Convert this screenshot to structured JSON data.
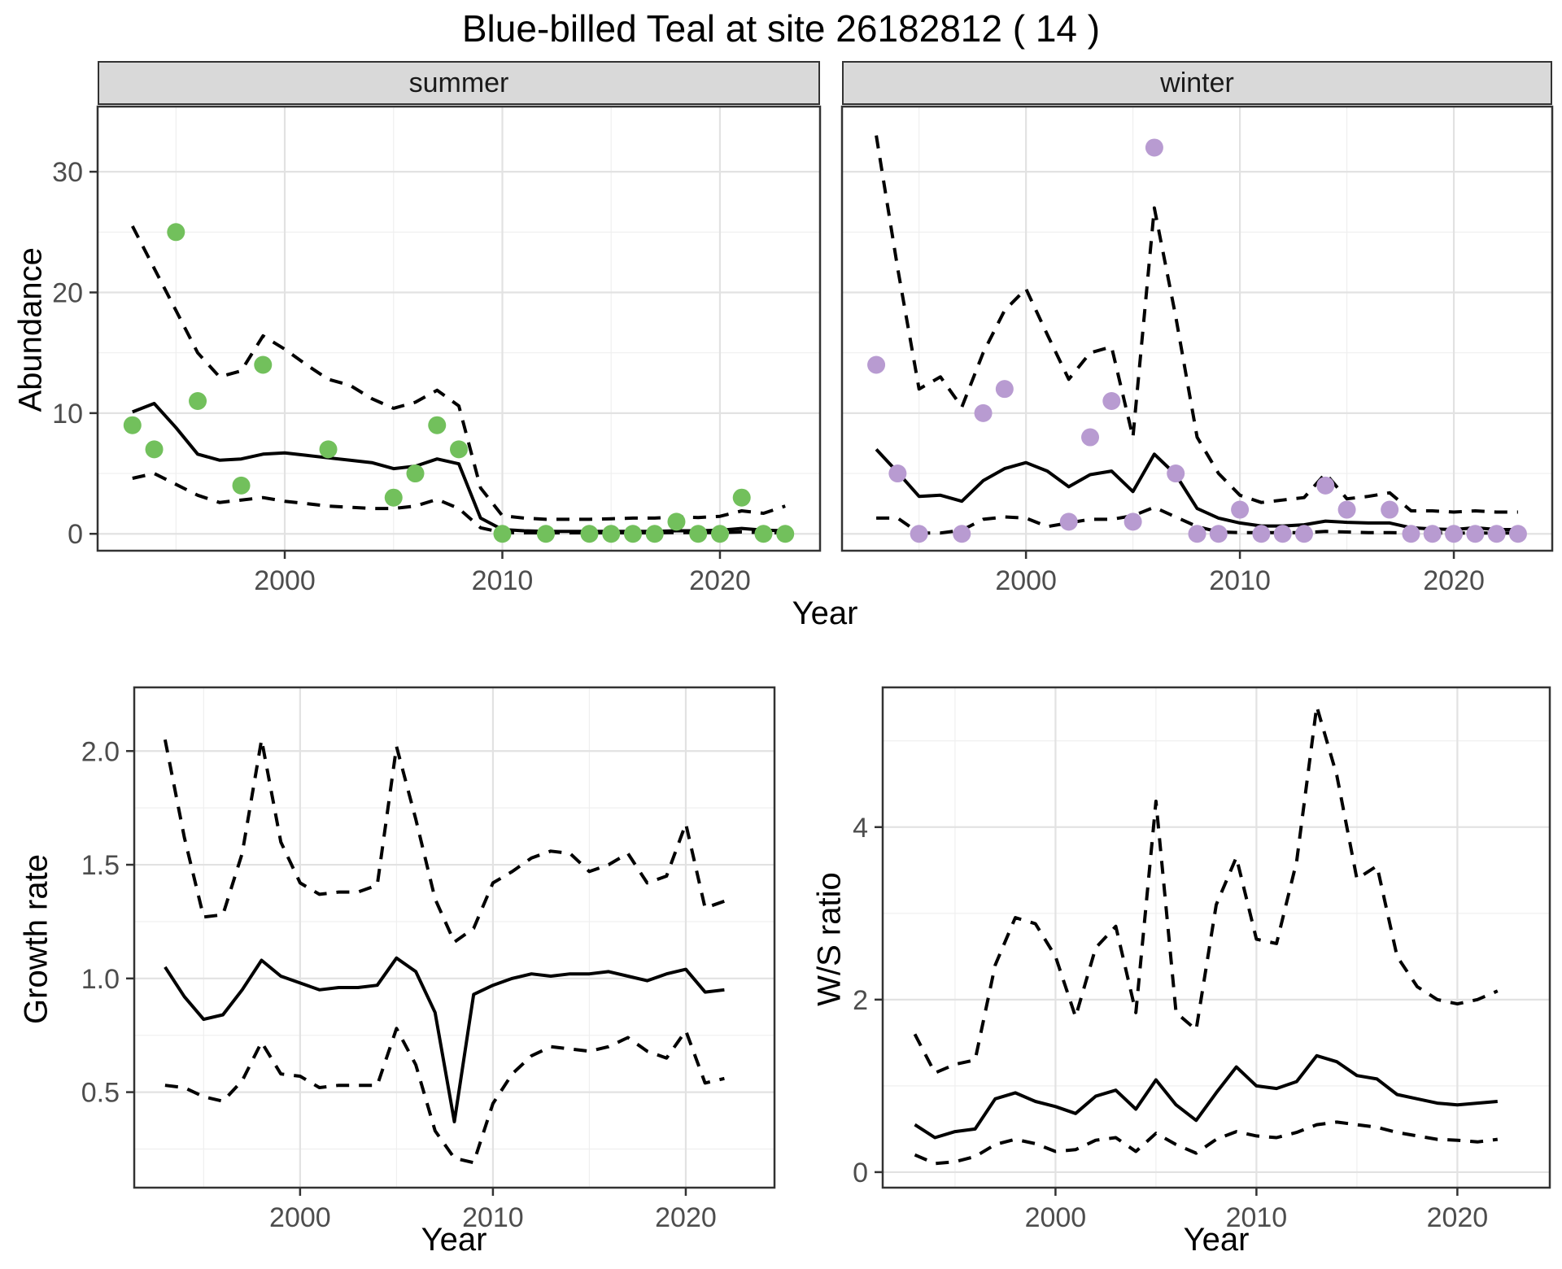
{
  "labels": {
    "title": "Blue-billed Teal at site 26182812 ( 14 )",
    "abundance": "Abundance",
    "growth_rate": "Growth rate",
    "ws_ratio": "W/S ratio",
    "year": "Year"
  },
  "colors": {
    "summer_points": "#72c05c",
    "winter_points": "#b89bd1",
    "line": "#000000",
    "strip_background": "#d9d9d9",
    "panel_border": "#333333",
    "grid_major": "#e2e2e2",
    "grid_minor": "#efefef",
    "tick_text": "#4d4d4d"
  },
  "chart_data": [
    {
      "id": "summer",
      "type": "line",
      "facet": "summer",
      "xlabel": "Year",
      "ylabel": "Abundance",
      "xlim": [
        1991.4,
        2024.6
      ],
      "ylim": [
        -1.4,
        35.4
      ],
      "x_ticks": [
        2000,
        2010,
        2020
      ],
      "x_minor": [
        1995,
        2005,
        2015
      ],
      "y_ticks": [
        0,
        10,
        20,
        30
      ],
      "y_minor": [
        5,
        15,
        25
      ],
      "series": [
        {
          "name": "mean",
          "style": "solid",
          "x": [
            1993,
            1994,
            1995,
            1996,
            1997,
            1998,
            1999,
            2000,
            2001,
            2002,
            2003,
            2004,
            2005,
            2006,
            2007,
            2008,
            2009,
            2010,
            2011,
            2012,
            2013,
            2014,
            2015,
            2016,
            2017,
            2018,
            2019,
            2020,
            2021,
            2022,
            2023
          ],
          "y": [
            10.1,
            10.8,
            8.8,
            6.6,
            6.1,
            6.2,
            6.6,
            6.7,
            6.5,
            6.3,
            6.1,
            5.9,
            5.4,
            5.6,
            6.2,
            5.8,
            1.3,
            0.35,
            0.25,
            0.2,
            0.2,
            0.2,
            0.2,
            0.2,
            0.2,
            0.25,
            0.25,
            0.3,
            0.45,
            0.3,
            0.25
          ]
        },
        {
          "name": "upper-ci",
          "style": "dashed",
          "x": [
            1993,
            1994,
            1995,
            1996,
            1997,
            1998,
            1999,
            2000,
            2001,
            2002,
            2003,
            2004,
            2005,
            2006,
            2007,
            2008,
            2009,
            2010,
            2011,
            2012,
            2013,
            2014,
            2015,
            2016,
            2017,
            2018,
            2019,
            2020,
            2021,
            2022,
            2023
          ],
          "y": [
            25.5,
            22.0,
            18.5,
            15.0,
            13.0,
            13.5,
            16.4,
            15.3,
            14.0,
            12.8,
            12.3,
            11.2,
            10.4,
            10.9,
            11.9,
            10.6,
            3.8,
            1.5,
            1.3,
            1.2,
            1.2,
            1.2,
            1.25,
            1.3,
            1.3,
            1.4,
            1.35,
            1.45,
            1.9,
            1.7,
            2.3
          ]
        },
        {
          "name": "lower-ci",
          "style": "dashed",
          "x": [
            1993,
            1994,
            1995,
            1996,
            1997,
            1998,
            1999,
            2000,
            2001,
            2002,
            2003,
            2004,
            2005,
            2006,
            2007,
            2008,
            2009,
            2010,
            2011,
            2012,
            2013,
            2014,
            2015,
            2016,
            2017,
            2018,
            2019,
            2020,
            2021,
            2022,
            2023
          ],
          "y": [
            4.6,
            5.0,
            4.1,
            3.2,
            2.6,
            2.8,
            3.0,
            2.7,
            2.5,
            2.3,
            2.2,
            2.1,
            2.1,
            2.3,
            2.85,
            2.1,
            0.5,
            0.1,
            0.08,
            0.08,
            0.08,
            0.08,
            0.08,
            0.08,
            0.08,
            0.1,
            0.1,
            0.1,
            0.15,
            0.1,
            0.08
          ]
        },
        {
          "name": "observed",
          "style": "points",
          "color": "#72c05c",
          "x": [
            1993,
            1994,
            1995,
            1996,
            1998,
            1999,
            2002,
            2005,
            2006,
            2007,
            2008,
            2010,
            2012,
            2014,
            2015,
            2016,
            2017,
            2018,
            2019,
            2020,
            2021,
            2022,
            2023
          ],
          "y": [
            9,
            7,
            25,
            11,
            4,
            14,
            7,
            3,
            5,
            9,
            7,
            0,
            0,
            0,
            0,
            0,
            0,
            1,
            0,
            0,
            3,
            0,
            0
          ]
        }
      ]
    },
    {
      "id": "winter",
      "type": "line",
      "facet": "winter",
      "xlabel": "Year",
      "ylabel": "Abundance",
      "xlim": [
        1991.4,
        2024.6
      ],
      "ylim": [
        -1.4,
        35.4
      ],
      "x_ticks": [
        2000,
        2010,
        2020
      ],
      "x_minor": [
        1995,
        2005,
        2015
      ],
      "y_ticks": [
        0,
        10,
        20,
        30
      ],
      "y_minor": [
        5,
        15,
        25
      ],
      "series": [
        {
          "name": "mean",
          "style": "solid",
          "x": [
            1993,
            1994,
            1995,
            1996,
            1997,
            1998,
            1999,
            2000,
            2001,
            2002,
            2003,
            2004,
            2005,
            2006,
            2007,
            2008,
            2009,
            2010,
            2011,
            2012,
            2013,
            2014,
            2015,
            2016,
            2017,
            2018,
            2019,
            2020,
            2021,
            2022,
            2023
          ],
          "y": [
            7.0,
            5.1,
            3.1,
            3.2,
            2.7,
            4.4,
            5.4,
            5.9,
            5.2,
            3.9,
            4.9,
            5.2,
            3.5,
            6.6,
            4.9,
            2.1,
            1.3,
            0.9,
            0.65,
            0.65,
            0.75,
            1.05,
            0.95,
            0.9,
            0.9,
            0.5,
            0.4,
            0.35,
            0.5,
            0.35,
            0.35
          ]
        },
        {
          "name": "upper-ci",
          "style": "dashed",
          "x": [
            1993,
            1994,
            1995,
            1996,
            1997,
            1998,
            1999,
            2000,
            2001,
            2002,
            2003,
            2004,
            2005,
            2006,
            2007,
            2008,
            2009,
            2010,
            2011,
            2012,
            2013,
            2014,
            2015,
            2016,
            2017,
            2018,
            2019,
            2020,
            2021,
            2022,
            2023
          ],
          "y": [
            33,
            22,
            12,
            13,
            10.5,
            15,
            18.5,
            20.3,
            16.5,
            12.8,
            15,
            15.5,
            8,
            27,
            18,
            8,
            5,
            3.2,
            2.6,
            2.8,
            3,
            5,
            2.9,
            3.1,
            3.4,
            1.9,
            1.9,
            1.8,
            1.9,
            1.8,
            1.8
          ]
        },
        {
          "name": "lower-ci",
          "style": "dashed",
          "x": [
            1993,
            1994,
            1995,
            1996,
            1997,
            1998,
            1999,
            2000,
            2001,
            2002,
            2003,
            2004,
            2005,
            2006,
            2007,
            2008,
            2009,
            2010,
            2011,
            2012,
            2013,
            2014,
            2015,
            2016,
            2017,
            2018,
            2019,
            2020,
            2021,
            2022,
            2023
          ],
          "y": [
            1.3,
            1.3,
            0.07,
            0.07,
            0.3,
            1.2,
            1.4,
            1.3,
            0.6,
            0.9,
            1.2,
            1.2,
            1.5,
            2.2,
            1.4,
            0.6,
            0.15,
            0.1,
            0.1,
            0.1,
            0.1,
            0.2,
            0.15,
            0.1,
            0.1,
            0.07,
            0.07,
            0.07,
            0.07,
            0.07,
            0.07
          ]
        },
        {
          "name": "observed",
          "style": "points",
          "color": "#b89bd1",
          "x": [
            1993,
            1994,
            1995,
            1997,
            1998,
            1999,
            2002,
            2003,
            2004,
            2005,
            2006,
            2007,
            2008,
            2009,
            2010,
            2011,
            2012,
            2013,
            2014,
            2015,
            2017,
            2018,
            2019,
            2020,
            2021,
            2022,
            2023
          ],
          "y": [
            14,
            5,
            0,
            0,
            10,
            12,
            1,
            8,
            11,
            1,
            32,
            5,
            0,
            0,
            2,
            0,
            0,
            0,
            4,
            2,
            2,
            0,
            0,
            0,
            0,
            0,
            0
          ]
        }
      ]
    },
    {
      "id": "growth",
      "type": "line",
      "facet": null,
      "xlabel": "Year",
      "ylabel": "Growth rate",
      "xlim": [
        1991.4,
        2024.6
      ],
      "ylim": [
        0.08,
        2.28
      ],
      "x_ticks": [
        2000,
        2010,
        2020
      ],
      "x_minor": [
        1995,
        2005,
        2015
      ],
      "y_ticks": [
        0.5,
        1.0,
        1.5,
        2.0
      ],
      "y_tick_labels": [
        "0.5",
        "1.0",
        "1.5",
        "2.0"
      ],
      "y_minor": [
        0.25,
        0.75,
        1.25,
        1.75
      ],
      "series": [
        {
          "name": "mean",
          "style": "solid",
          "x": [
            1993,
            1994,
            1995,
            1996,
            1997,
            1998,
            1999,
            2000,
            2001,
            2002,
            2003,
            2004,
            2005,
            2006,
            2007,
            2008,
            2009,
            2010,
            2011,
            2012,
            2013,
            2014,
            2015,
            2016,
            2017,
            2018,
            2019,
            2020,
            2021,
            2022
          ],
          "y": [
            1.05,
            0.92,
            0.82,
            0.84,
            0.95,
            1.08,
            1.01,
            0.98,
            0.95,
            0.96,
            0.96,
            0.97,
            1.09,
            1.03,
            0.85,
            0.37,
            0.93,
            0.97,
            1.0,
            1.02,
            1.01,
            1.02,
            1.02,
            1.03,
            1.01,
            0.99,
            1.02,
            1.04,
            0.94,
            0.95
          ]
        },
        {
          "name": "upper-ci",
          "style": "dashed",
          "x": [
            1993,
            1994,
            1995,
            1996,
            1997,
            1998,
            1999,
            2000,
            2001,
            2002,
            2003,
            2004,
            2005,
            2006,
            2007,
            2008,
            2009,
            2010,
            2011,
            2012,
            2013,
            2014,
            2015,
            2016,
            2017,
            2018,
            2019,
            2020,
            2021,
            2022
          ],
          "y": [
            2.05,
            1.62,
            1.27,
            1.28,
            1.55,
            2.05,
            1.6,
            1.42,
            1.37,
            1.38,
            1.38,
            1.41,
            2.02,
            1.7,
            1.35,
            1.16,
            1.22,
            1.42,
            1.47,
            1.53,
            1.56,
            1.55,
            1.47,
            1.5,
            1.55,
            1.42,
            1.45,
            1.68,
            1.31,
            1.34
          ]
        },
        {
          "name": "lower-ci",
          "style": "dashed",
          "x": [
            1993,
            1994,
            1995,
            1996,
            1997,
            1998,
            1999,
            2000,
            2001,
            2002,
            2003,
            2004,
            2005,
            2006,
            2007,
            2008,
            2009,
            2010,
            2011,
            2012,
            2013,
            2014,
            2015,
            2016,
            2017,
            2018,
            2019,
            2020,
            2021,
            2022
          ],
          "y": [
            0.53,
            0.52,
            0.48,
            0.46,
            0.55,
            0.72,
            0.58,
            0.57,
            0.52,
            0.53,
            0.53,
            0.53,
            0.78,
            0.62,
            0.33,
            0.21,
            0.19,
            0.45,
            0.58,
            0.66,
            0.7,
            0.69,
            0.68,
            0.7,
            0.74,
            0.68,
            0.65,
            0.77,
            0.54,
            0.56
          ]
        }
      ]
    },
    {
      "id": "ws",
      "type": "line",
      "facet": null,
      "xlabel": "Year",
      "ylabel": "W/S ratio",
      "xlim": [
        1991.4,
        2024.6
      ],
      "ylim": [
        -0.18,
        5.62
      ],
      "x_ticks": [
        2000,
        2010,
        2020
      ],
      "x_minor": [
        1995,
        2005,
        2015
      ],
      "y_ticks": [
        0,
        2,
        4
      ],
      "y_minor": [
        1,
        3,
        5
      ],
      "series": [
        {
          "name": "mean",
          "style": "solid",
          "x": [
            1993,
            1994,
            1995,
            1996,
            1997,
            1998,
            1999,
            2000,
            2001,
            2002,
            2003,
            2004,
            2005,
            2006,
            2007,
            2008,
            2009,
            2010,
            2011,
            2012,
            2013,
            2014,
            2015,
            2016,
            2017,
            2018,
            2019,
            2020,
            2021,
            2022
          ],
          "y": [
            0.55,
            0.4,
            0.47,
            0.5,
            0.85,
            0.92,
            0.82,
            0.76,
            0.68,
            0.88,
            0.95,
            0.73,
            1.07,
            0.78,
            0.6,
            0.92,
            1.22,
            1.0,
            0.97,
            1.05,
            1.35,
            1.28,
            1.12,
            1.08,
            0.9,
            0.85,
            0.8,
            0.78,
            0.8,
            0.82
          ]
        },
        {
          "name": "upper-ci",
          "style": "dashed",
          "x": [
            1993,
            1994,
            1995,
            1996,
            1997,
            1998,
            1999,
            2000,
            2001,
            2002,
            2003,
            2004,
            2005,
            2006,
            2007,
            2008,
            2009,
            2010,
            2011,
            2012,
            2013,
            2014,
            2015,
            2016,
            2017,
            2018,
            2019,
            2020,
            2021,
            2022
          ],
          "y": [
            1.6,
            1.15,
            1.25,
            1.3,
            2.4,
            2.95,
            2.88,
            2.5,
            1.8,
            2.6,
            2.85,
            1.85,
            4.3,
            1.85,
            1.65,
            3.1,
            3.65,
            2.7,
            2.65,
            3.6,
            5.4,
            4.6,
            3.4,
            3.55,
            2.5,
            2.15,
            2.0,
            1.95,
            2.0,
            2.1
          ]
        },
        {
          "name": "lower-ci",
          "style": "dashed",
          "x": [
            1993,
            1994,
            1995,
            1996,
            1997,
            1998,
            1999,
            2000,
            2001,
            2002,
            2003,
            2004,
            2005,
            2006,
            2007,
            2008,
            2009,
            2010,
            2011,
            2012,
            2013,
            2014,
            2015,
            2016,
            2017,
            2018,
            2019,
            2020,
            2021,
            2022
          ],
          "y": [
            0.2,
            0.1,
            0.12,
            0.18,
            0.32,
            0.38,
            0.33,
            0.24,
            0.26,
            0.37,
            0.4,
            0.24,
            0.45,
            0.32,
            0.22,
            0.38,
            0.47,
            0.42,
            0.4,
            0.46,
            0.55,
            0.58,
            0.55,
            0.52,
            0.46,
            0.42,
            0.38,
            0.37,
            0.35,
            0.38
          ]
        }
      ]
    }
  ]
}
